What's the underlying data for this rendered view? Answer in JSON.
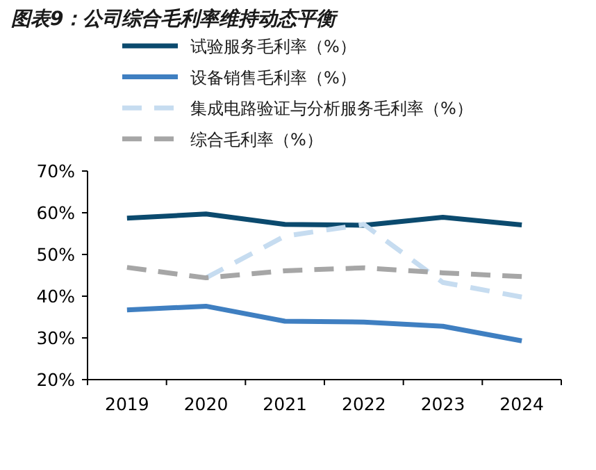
{
  "chart_data": {
    "type": "line",
    "title": "图表9：公司综合毛利率维持动态平衡",
    "categories": [
      "2019",
      "2020",
      "2021",
      "2022",
      "2023",
      "2024"
    ],
    "series": [
      {
        "name": "试验服务毛利率（%）",
        "color": "#0b4a6e",
        "line_style": "solid",
        "values": [
          58.7,
          59.7,
          57.2,
          57.0,
          58.9,
          57.1
        ]
      },
      {
        "name": "设备销售毛利率（%）",
        "color": "#3f7fc1",
        "line_style": "solid",
        "values": [
          36.7,
          37.6,
          34.0,
          33.8,
          32.8,
          29.3
        ]
      },
      {
        "name": "集成电路验证与分析服务毛利率（%）",
        "color": "#c6dcf0",
        "line_style": "dashed",
        "values": [
          null,
          44.4,
          54.4,
          57.2,
          43.3,
          39.8
        ]
      },
      {
        "name": "综合毛利率（%）",
        "color": "#a6a6a6",
        "line_style": "dashed",
        "values": [
          46.9,
          44.4,
          46.1,
          46.8,
          45.6,
          44.7
        ]
      }
    ],
    "ylim": [
      20,
      70
    ],
    "yticks": [
      {
        "value": 20,
        "label": "20%"
      },
      {
        "value": 30,
        "label": "30%"
      },
      {
        "value": 40,
        "label": "40%"
      },
      {
        "value": 50,
        "label": "50%"
      },
      {
        "value": 60,
        "label": "60%"
      },
      {
        "value": 70,
        "label": "70%"
      }
    ],
    "legend": "top"
  }
}
